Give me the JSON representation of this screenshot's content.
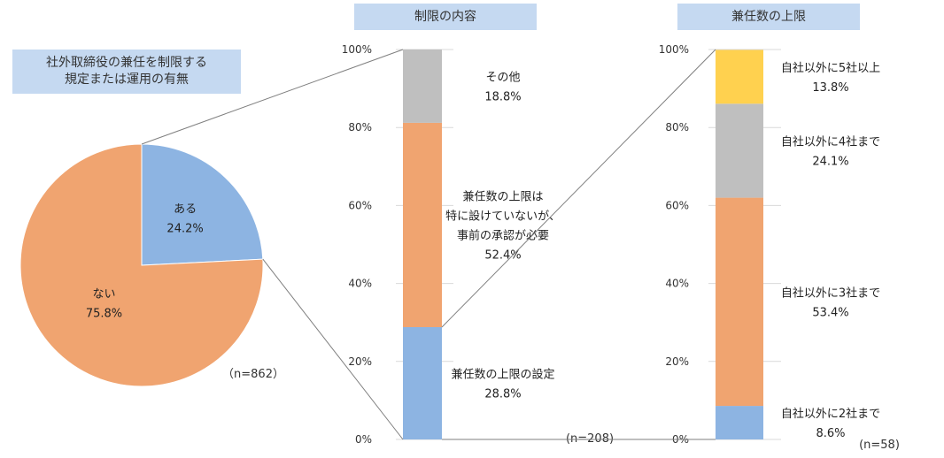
{
  "chart_data": [
    {
      "type": "pie",
      "title_lines": [
        "社外取締役の兼任を制限する",
        "規定または運用の有無"
      ],
      "n_label": "（n=862）",
      "slices": [
        {
          "label": "ある",
          "value": 24.2,
          "value_label": "24.2%",
          "color": "#8db4e2"
        },
        {
          "label": "ない",
          "value": 75.8,
          "value_label": "75.8%",
          "color": "#f0a470"
        }
      ]
    },
    {
      "type": "bar",
      "stacked": true,
      "title": "制限の内容",
      "n_label": "(n=208)",
      "ylim": [
        0,
        100
      ],
      "yticks": [
        "0%",
        "20%",
        "40%",
        "60%",
        "80%",
        "100%"
      ],
      "segments": [
        {
          "lines": [
            "兼任数の上限の設定"
          ],
          "value": 28.8,
          "value_label": "28.8%",
          "color": "#8db4e2"
        },
        {
          "lines": [
            "兼任数の上限は",
            "特に設けていないが、",
            "事前の承認が必要"
          ],
          "value": 52.4,
          "value_label": "52.4%",
          "color": "#f0a470"
        },
        {
          "lines": [
            "その他"
          ],
          "value": 18.8,
          "value_label": "18.8%",
          "color": "#bfbfbf"
        }
      ]
    },
    {
      "type": "bar",
      "stacked": true,
      "title": "兼任数の上限",
      "n_label": "(n=58)",
      "ylim": [
        0,
        100
      ],
      "yticks": [
        "0%",
        "20%",
        "40%",
        "60%",
        "80%",
        "100%"
      ],
      "segments": [
        {
          "lines": [
            "自社以外に2社まで"
          ],
          "value": 8.6,
          "value_label": "8.6%",
          "color": "#8db4e2"
        },
        {
          "lines": [
            "自社以外に3社まで"
          ],
          "value": 53.4,
          "value_label": "53.4%",
          "color": "#f0a470"
        },
        {
          "lines": [
            "自社以外に4社まで"
          ],
          "value": 24.1,
          "value_label": "24.1%",
          "color": "#bfbfbf"
        },
        {
          "lines": [
            "自社以外に5社以上"
          ],
          "value": 13.8,
          "value_label": "13.8%",
          "color": "#ffd14f"
        }
      ]
    }
  ]
}
